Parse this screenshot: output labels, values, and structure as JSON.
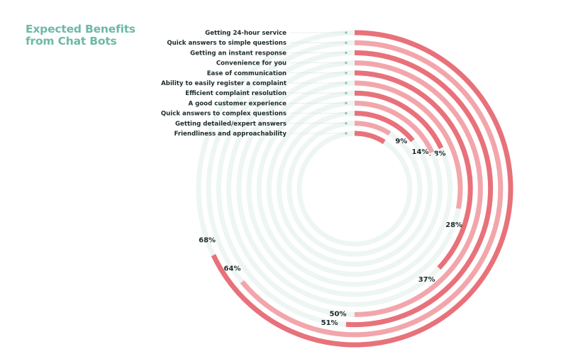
{
  "chart_data": {
    "type": "radial-bar",
    "title_lines": [
      "Expected Benefits",
      "from Chat Bots"
    ],
    "value_suffix": "%",
    "max": 100,
    "grid": false,
    "legend": "none",
    "categories": [
      "Getting 24-hour service",
      "Quick answers to simple questions",
      "Getting an instant response",
      "Convenience for you",
      "Ease of communication",
      "Ability to easily register a complaint",
      "Efficient complaint resolution",
      "A good customer experience",
      "Quick answers to complex questions",
      "Getting detailed/expert answers",
      "Friendliness and approachability"
    ],
    "values": [
      68,
      64,
      51,
      50,
      37,
      28,
      18,
      18,
      14,
      9,
      9
    ]
  },
  "colors": {
    "title": "#6cb9a6",
    "bar_dark": "#e8717a",
    "bar_light": "#f2a6ab",
    "track": "#eef6f4",
    "marker": "#7cc3b1",
    "leader": "#c9d6d3",
    "label": "#1e2b2b"
  }
}
